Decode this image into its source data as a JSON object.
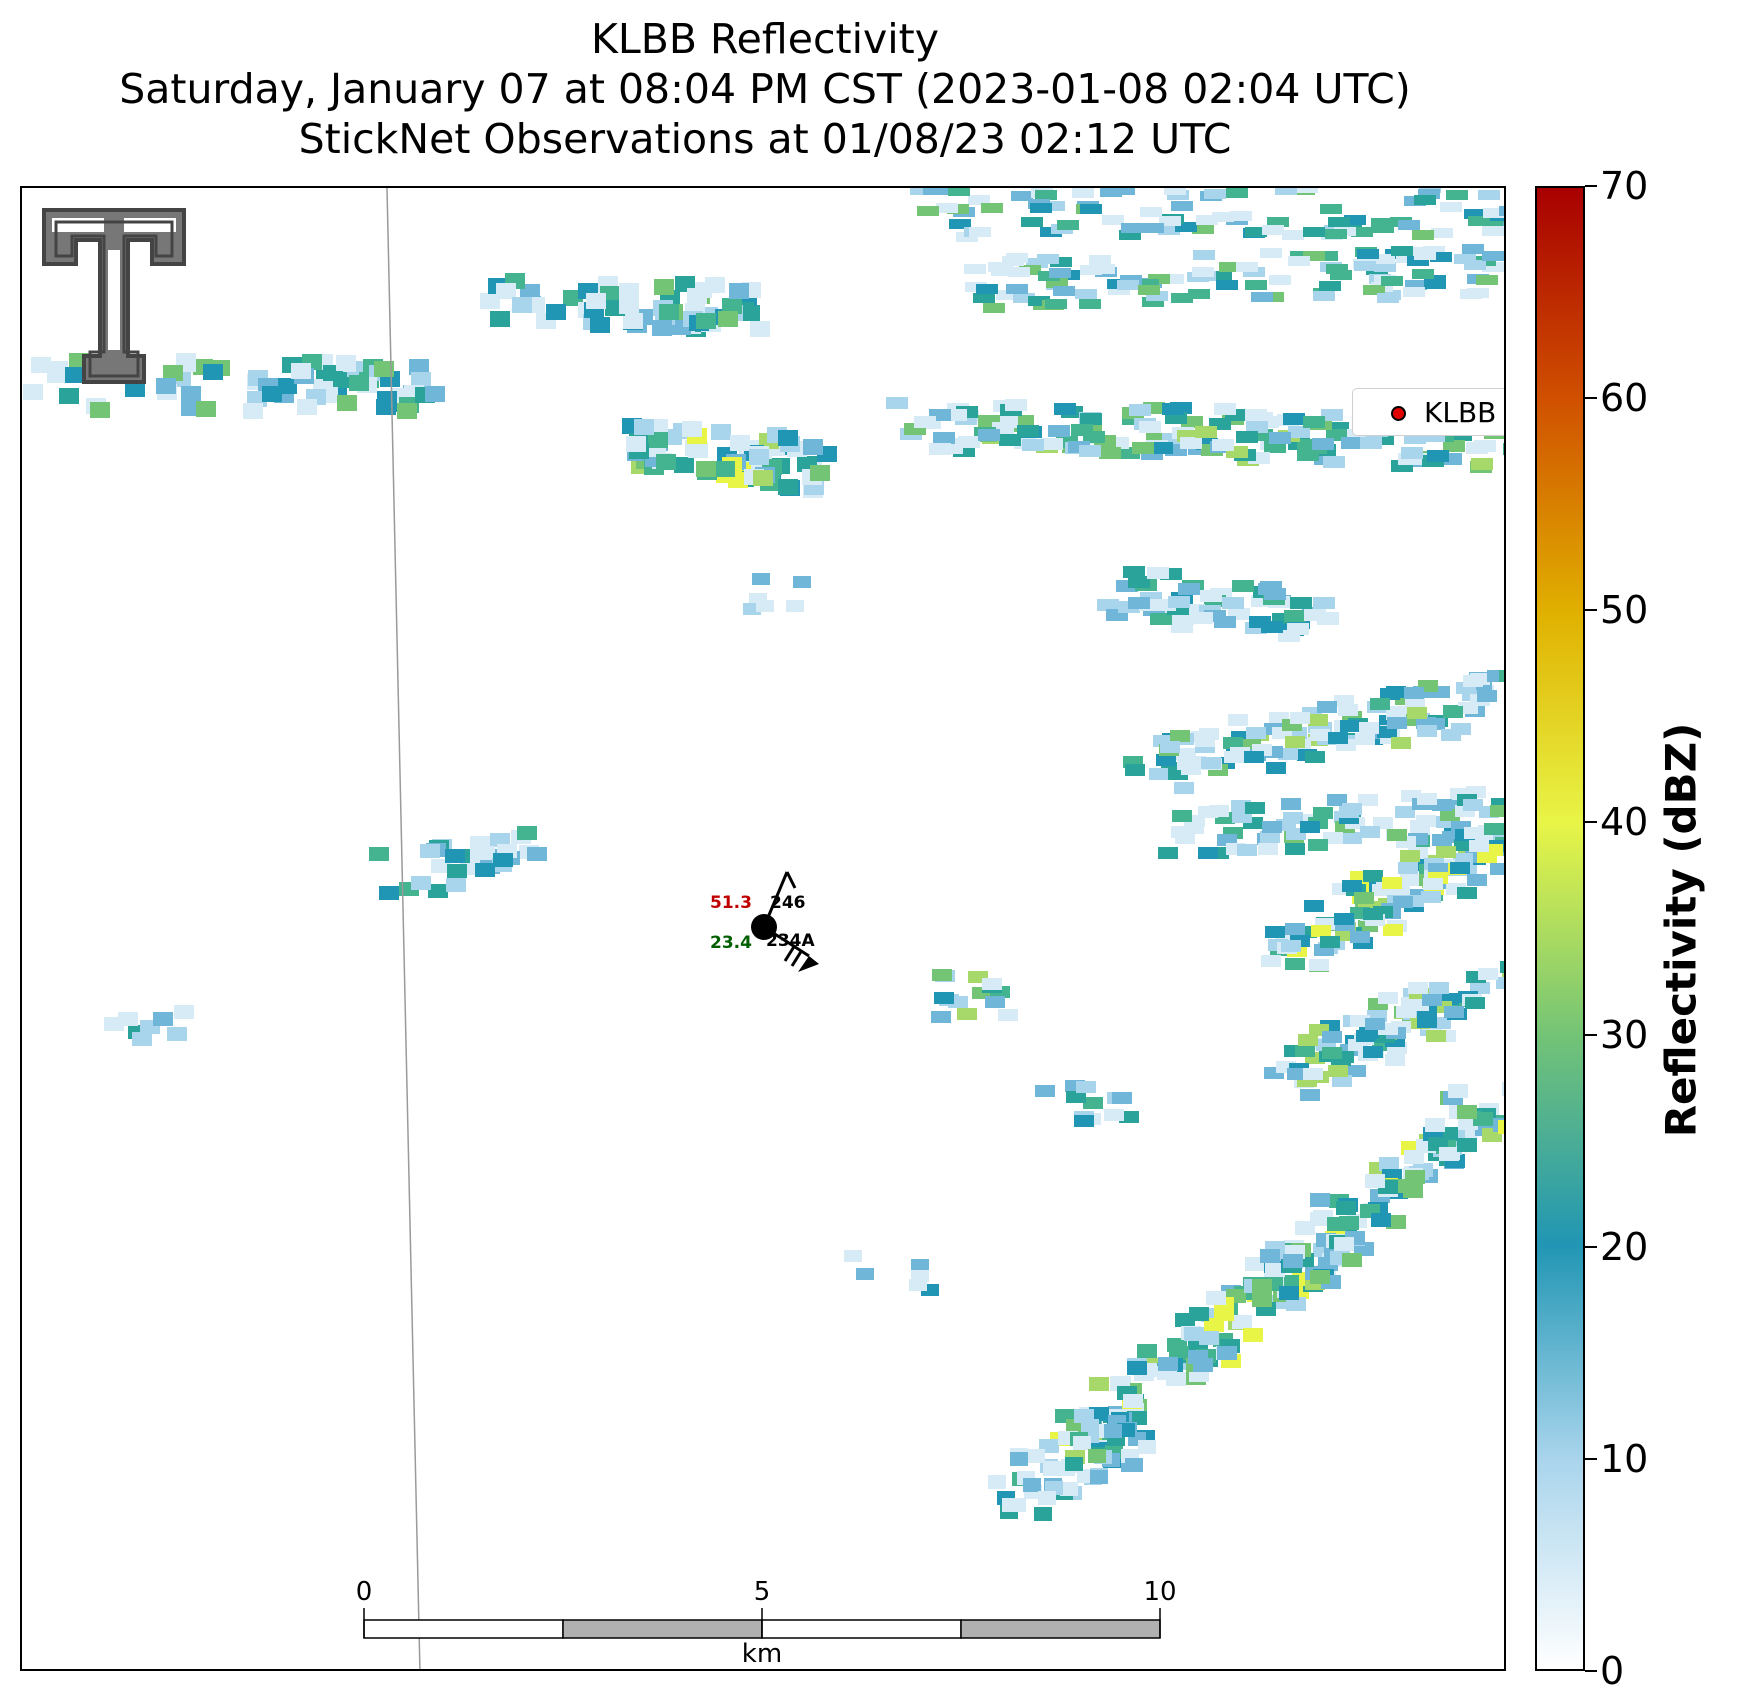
{
  "title": {
    "line1": "KLBB Reflectivity",
    "line2": "Saturday, January 07 at 08:04 PM CST (2023-01-08 02:04 UTC)",
    "line3": "StickNet Observations at 01/08/23 02:12 UTC"
  },
  "legend": {
    "label": "KLBB",
    "marker_color": "#e00000"
  },
  "colorbar": {
    "label": "Reflectivity (dBZ)",
    "ticks": [
      "0",
      "10",
      "20",
      "30",
      "40",
      "50",
      "60",
      "70"
    ],
    "range": [
      0,
      70
    ],
    "colors": [
      "#ffffff",
      "#a8d4ec",
      "#2196b4",
      "#74c476",
      "#e8f547",
      "#e0b000",
      "#d05000",
      "#a80000"
    ]
  },
  "station": {
    "temperature": "51.3",
    "dewpoint": "23.4",
    "pressure_code": "246",
    "station_id": "234A",
    "temperature_color": "#c00000",
    "dewpoint_color": "#006000"
  },
  "scalebar": {
    "labels": [
      "0",
      "5",
      "10"
    ],
    "unit": "km"
  },
  "logo": {
    "name": "texas-tech-double-t-logo"
  }
}
